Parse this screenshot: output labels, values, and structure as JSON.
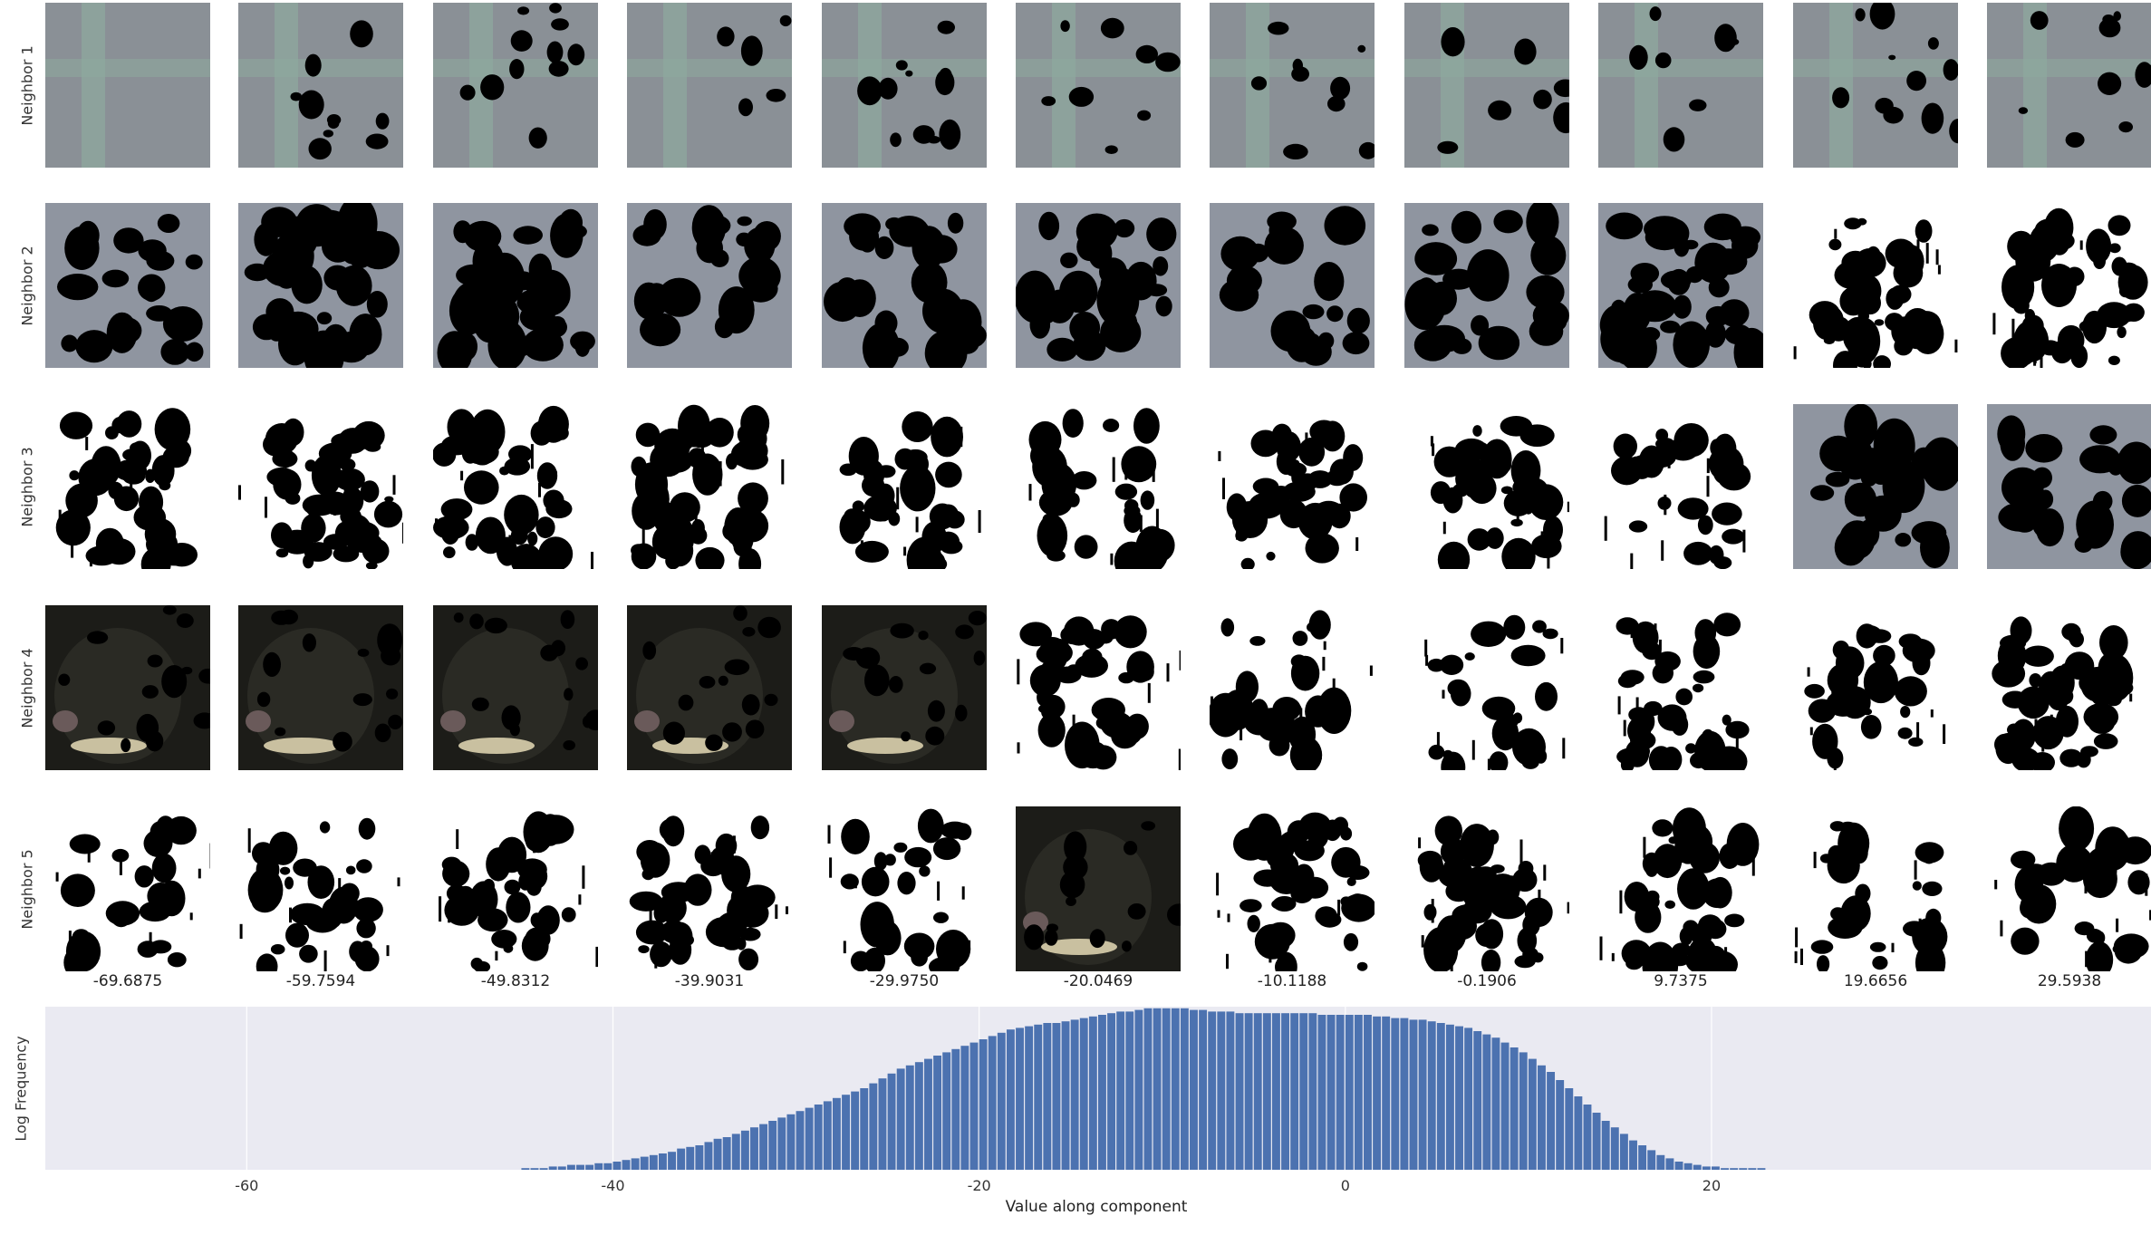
{
  "rows": [
    {
      "label": "Neighbor 1",
      "patches": [
        "green",
        "green",
        "green",
        "green",
        "green",
        "green",
        "green",
        "green",
        "green",
        "green",
        "green"
      ]
    },
    {
      "label": "Neighbor 2",
      "patches": [
        "gray",
        "gray",
        "gray",
        "gray",
        "gray",
        "gray",
        "gray",
        "gray",
        "gray",
        "white",
        "white"
      ]
    },
    {
      "label": "Neighbor 3",
      "patches": [
        "white",
        "white",
        "white",
        "white",
        "white",
        "white",
        "white",
        "white",
        "white",
        "gray",
        "gray"
      ]
    },
    {
      "label": "Neighbor 4",
      "patches": [
        "dark",
        "dark",
        "dark",
        "dark",
        "dark",
        "white",
        "white",
        "white",
        "white",
        "white",
        "white"
      ]
    },
    {
      "label": "Neighbor 5",
      "patches": [
        "white",
        "white",
        "white",
        "white",
        "white",
        "dark",
        "white",
        "white",
        "white",
        "white",
        "white"
      ]
    }
  ],
  "column_values": [
    "-69.6875",
    "-59.7594",
    "-49.8312",
    "-39.9031",
    "-29.9750",
    "-20.0469",
    "-10.1188",
    "-0.1906",
    "9.7375",
    "19.6656",
    "29.5938"
  ],
  "colors": {
    "hist_bar": "#4c72b0",
    "hist_bg": "#eaeaf2",
    "patch_green": "#8a9096",
    "patch_gray": "#8f95a0",
    "patch_dark": "#1c1c18",
    "patch_white": "#ffffff"
  },
  "chart_data": {
    "type": "bar",
    "title": "",
    "xlabel": "Value along component",
    "ylabel": "Log Frequency",
    "xlim": [
      -71,
      44
    ],
    "ylim": [
      0,
      1
    ],
    "x_ticks": [
      -60,
      -40,
      -20,
      0,
      20
    ],
    "grid": true,
    "bin_width": 0.5,
    "x_start": -45,
    "values": [
      0.01,
      0.01,
      0.01,
      0.02,
      0.02,
      0.03,
      0.03,
      0.03,
      0.04,
      0.04,
      0.05,
      0.06,
      0.07,
      0.08,
      0.09,
      0.1,
      0.11,
      0.13,
      0.14,
      0.15,
      0.17,
      0.19,
      0.2,
      0.22,
      0.24,
      0.26,
      0.28,
      0.3,
      0.32,
      0.34,
      0.36,
      0.38,
      0.4,
      0.42,
      0.44,
      0.46,
      0.48,
      0.5,
      0.53,
      0.56,
      0.59,
      0.62,
      0.64,
      0.66,
      0.68,
      0.7,
      0.72,
      0.74,
      0.76,
      0.78,
      0.8,
      0.82,
      0.84,
      0.86,
      0.87,
      0.88,
      0.89,
      0.9,
      0.9,
      0.91,
      0.92,
      0.93,
      0.94,
      0.95,
      0.96,
      0.97,
      0.97,
      0.98,
      0.99,
      0.99,
      0.99,
      0.99,
      0.99,
      0.98,
      0.98,
      0.97,
      0.97,
      0.97,
      0.96,
      0.96,
      0.96,
      0.96,
      0.96,
      0.96,
      0.96,
      0.96,
      0.96,
      0.95,
      0.95,
      0.95,
      0.95,
      0.95,
      0.95,
      0.94,
      0.94,
      0.93,
      0.93,
      0.92,
      0.92,
      0.91,
      0.9,
      0.89,
      0.88,
      0.87,
      0.85,
      0.83,
      0.81,
      0.78,
      0.75,
      0.72,
      0.68,
      0.64,
      0.6,
      0.55,
      0.5,
      0.45,
      0.4,
      0.35,
      0.3,
      0.26,
      0.22,
      0.18,
      0.15,
      0.12,
      0.09,
      0.07,
      0.05,
      0.04,
      0.03,
      0.02,
      0.02,
      0.01,
      0.01,
      0.01,
      0.01,
      0.01
    ]
  }
}
